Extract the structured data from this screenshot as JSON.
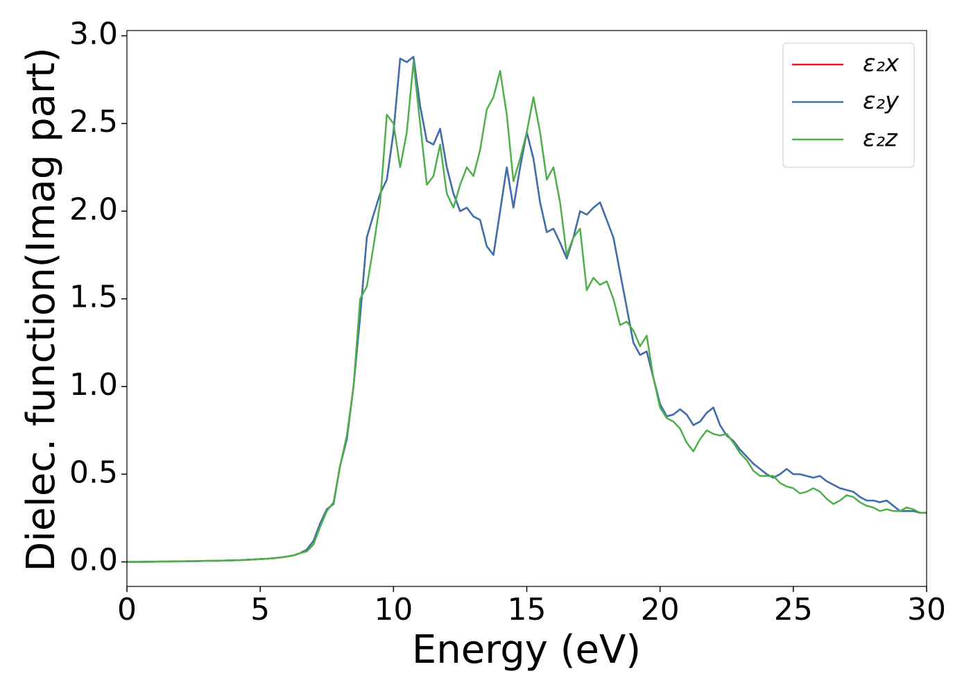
{
  "chart_data": {
    "type": "line",
    "xlabel": "Energy (eV)",
    "ylabel": "Dielec. function(Imag part)",
    "xlim": [
      0,
      30
    ],
    "ylim": [
      -0.14,
      3.03
    ],
    "xticks": [
      0,
      5,
      10,
      15,
      20,
      25,
      30
    ],
    "yticks": [
      {
        "value": 0,
        "label": "0.0"
      },
      {
        "value": 0.5,
        "label": "0.5"
      },
      {
        "value": 1,
        "label": "1.0"
      },
      {
        "value": 1.5,
        "label": "1.5"
      },
      {
        "value": 2,
        "label": "2.0"
      },
      {
        "value": 2.5,
        "label": "2.5"
      },
      {
        "value": 3,
        "label": "3.0"
      }
    ],
    "grid": false,
    "legend": "upper right",
    "x": [
      0,
      0.25,
      0.5,
      0.75,
      1,
      1.25,
      1.5,
      1.75,
      2,
      2.25,
      2.5,
      2.75,
      3,
      3.25,
      3.5,
      3.75,
      4,
      4.25,
      4.5,
      4.75,
      5,
      5.25,
      5.5,
      5.75,
      6,
      6.25,
      6.5,
      6.75,
      7,
      7.25,
      7.5,
      7.75,
      8,
      8.25,
      8.5,
      8.75,
      9,
      9.25,
      9.5,
      9.75,
      10,
      10.25,
      10.5,
      10.75,
      11,
      11.25,
      11.5,
      11.75,
      12,
      12.25,
      12.5,
      12.75,
      13,
      13.25,
      13.5,
      13.75,
      14,
      14.25,
      14.5,
      14.75,
      15,
      15.25,
      15.5,
      15.75,
      16,
      16.25,
      16.5,
      16.75,
      17,
      17.25,
      17.5,
      17.75,
      18,
      18.25,
      18.5,
      18.75,
      19,
      19.25,
      19.5,
      19.75,
      20,
      20.25,
      20.5,
      20.75,
      21,
      21.25,
      21.5,
      21.75,
      22,
      22.25,
      22.5,
      22.75,
      23,
      23.25,
      23.5,
      23.75,
      24,
      24.25,
      24.5,
      24.75,
      25,
      25.25,
      25.5,
      25.75,
      26,
      26.25,
      26.5,
      26.75,
      27,
      27.25,
      27.5,
      27.75,
      28,
      28.25,
      28.5,
      28.75,
      29,
      29.25,
      29.5,
      29.75,
      30
    ],
    "series": [
      {
        "name": "ε₂x",
        "color": "#e41a1c",
        "values": [
          0,
          0,
          0,
          0.001,
          0.001,
          0.002,
          0.002,
          0.003,
          0.003,
          0.004,
          0.004,
          0.005,
          0.006,
          0.006,
          0.007,
          0.008,
          0.009,
          0.01,
          0.012,
          0.014,
          0.016,
          0.018,
          0.021,
          0.025,
          0.03,
          0.037,
          0.05,
          0.07,
          0.12,
          0.22,
          0.3,
          0.33,
          0.55,
          0.7,
          1.0,
          1.4,
          1.85,
          1.98,
          2.1,
          2.18,
          2.45,
          2.87,
          2.85,
          2.88,
          2.6,
          2.4,
          2.38,
          2.47,
          2.25,
          2.1,
          2.0,
          2.02,
          1.97,
          1.95,
          1.8,
          1.75,
          2.0,
          2.25,
          2.02,
          2.25,
          2.45,
          2.3,
          2.05,
          1.88,
          1.9,
          1.82,
          1.73,
          1.85,
          2.0,
          1.98,
          2.02,
          2.05,
          1.95,
          1.85,
          1.65,
          1.45,
          1.25,
          1.18,
          1.2,
          1.05,
          0.9,
          0.83,
          0.84,
          0.87,
          0.84,
          0.78,
          0.8,
          0.85,
          0.88,
          0.78,
          0.72,
          0.69,
          0.64,
          0.6,
          0.56,
          0.53,
          0.5,
          0.48,
          0.5,
          0.53,
          0.5,
          0.5,
          0.49,
          0.48,
          0.49,
          0.46,
          0.44,
          0.42,
          0.41,
          0.4,
          0.37,
          0.35,
          0.35,
          0.34,
          0.35,
          0.32,
          0.29,
          0.29,
          0.29,
          0.28,
          0.28
        ]
      },
      {
        "name": "ε₂y",
        "color": "#3a72b2",
        "values": [
          0,
          0,
          0,
          0.001,
          0.001,
          0.002,
          0.002,
          0.003,
          0.003,
          0.004,
          0.004,
          0.005,
          0.006,
          0.006,
          0.007,
          0.008,
          0.009,
          0.01,
          0.012,
          0.014,
          0.016,
          0.018,
          0.021,
          0.025,
          0.03,
          0.037,
          0.05,
          0.07,
          0.12,
          0.22,
          0.3,
          0.33,
          0.55,
          0.7,
          1.0,
          1.4,
          1.85,
          1.98,
          2.1,
          2.18,
          2.45,
          2.87,
          2.85,
          2.88,
          2.6,
          2.4,
          2.38,
          2.47,
          2.25,
          2.1,
          2.0,
          2.02,
          1.97,
          1.95,
          1.8,
          1.75,
          2.0,
          2.25,
          2.02,
          2.25,
          2.45,
          2.3,
          2.05,
          1.88,
          1.9,
          1.82,
          1.73,
          1.85,
          2.0,
          1.98,
          2.02,
          2.05,
          1.95,
          1.85,
          1.65,
          1.45,
          1.25,
          1.18,
          1.2,
          1.05,
          0.9,
          0.83,
          0.84,
          0.87,
          0.84,
          0.78,
          0.8,
          0.85,
          0.88,
          0.78,
          0.72,
          0.69,
          0.64,
          0.6,
          0.56,
          0.53,
          0.5,
          0.48,
          0.5,
          0.53,
          0.5,
          0.5,
          0.49,
          0.48,
          0.49,
          0.46,
          0.44,
          0.42,
          0.41,
          0.4,
          0.37,
          0.35,
          0.35,
          0.34,
          0.35,
          0.32,
          0.29,
          0.29,
          0.29,
          0.28,
          0.28
        ]
      },
      {
        "name": "ε₂z",
        "color": "#4daf4a",
        "values": [
          0,
          0,
          0,
          0.001,
          0.001,
          0.002,
          0.002,
          0.003,
          0.003,
          0.004,
          0.004,
          0.005,
          0.006,
          0.006,
          0.007,
          0.008,
          0.009,
          0.01,
          0.012,
          0.014,
          0.016,
          0.018,
          0.021,
          0.025,
          0.03,
          0.037,
          0.05,
          0.06,
          0.1,
          0.2,
          0.29,
          0.34,
          0.55,
          0.72,
          1.0,
          1.5,
          1.57,
          1.8,
          2.05,
          2.55,
          2.5,
          2.25,
          2.45,
          2.85,
          2.5,
          2.15,
          2.2,
          2.38,
          2.1,
          2.02,
          2.15,
          2.25,
          2.2,
          2.35,
          2.58,
          2.65,
          2.8,
          2.55,
          2.17,
          2.3,
          2.45,
          2.65,
          2.45,
          2.18,
          2.25,
          2.05,
          1.75,
          1.85,
          1.9,
          1.55,
          1.62,
          1.58,
          1.6,
          1.5,
          1.35,
          1.37,
          1.32,
          1.23,
          1.29,
          1.05,
          0.88,
          0.82,
          0.8,
          0.76,
          0.68,
          0.63,
          0.7,
          0.75,
          0.73,
          0.72,
          0.73,
          0.68,
          0.62,
          0.58,
          0.52,
          0.49,
          0.49,
          0.49,
          0.45,
          0.43,
          0.42,
          0.39,
          0.4,
          0.42,
          0.4,
          0.36,
          0.33,
          0.35,
          0.38,
          0.37,
          0.34,
          0.32,
          0.31,
          0.29,
          0.3,
          0.29,
          0.29,
          0.31,
          0.3,
          0.28,
          0.28
        ]
      }
    ]
  }
}
